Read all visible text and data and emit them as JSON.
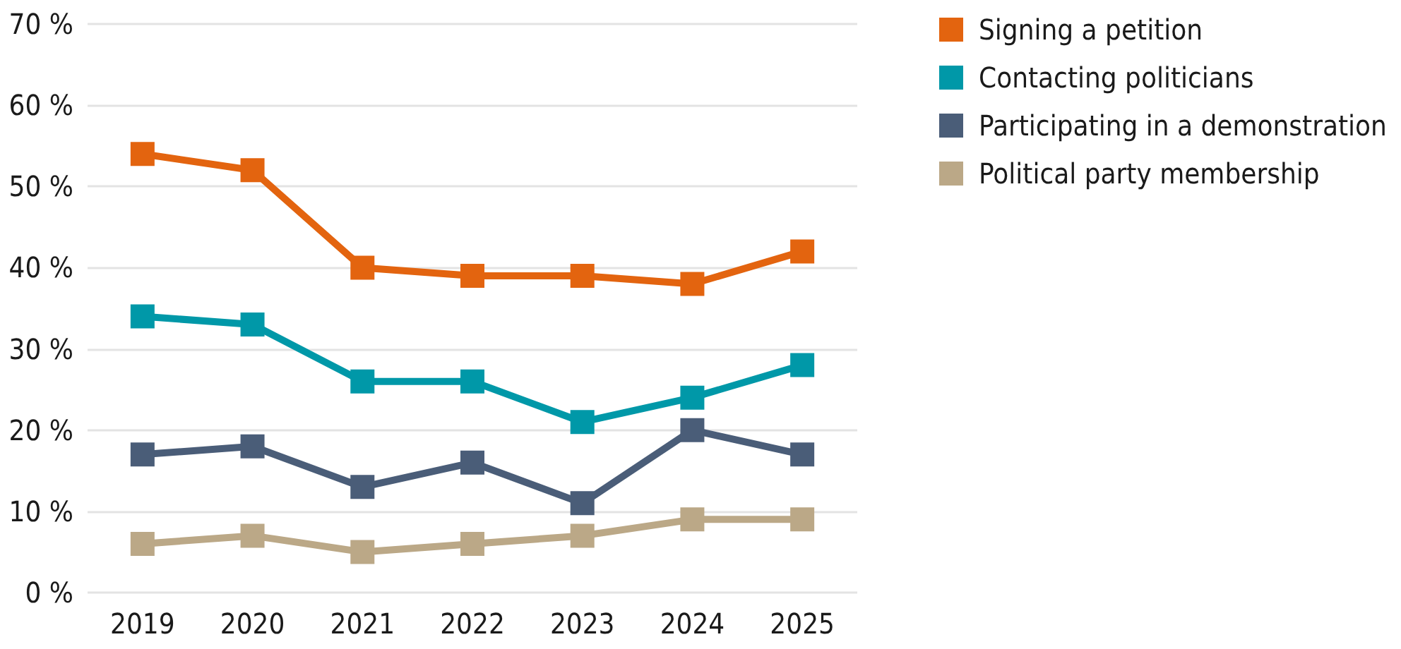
{
  "chart_data": {
    "type": "line",
    "categories": [
      "2019",
      "2020",
      "2021",
      "2022",
      "2023",
      "2024",
      "2025"
    ],
    "series": [
      {
        "name": "Signing a petition",
        "color": "#e3640f",
        "values": [
          54,
          52,
          40,
          39,
          39,
          38,
          42
        ]
      },
      {
        "name": "Contacting politicians",
        "color": "#0098a8",
        "values": [
          34,
          33,
          26,
          26,
          21,
          24,
          28
        ]
      },
      {
        "name": "Participating in a demonstration",
        "color": "#4a5d78",
        "values": [
          17,
          18,
          13,
          16,
          11,
          20,
          17
        ]
      },
      {
        "name": "Political party membership",
        "color": "#bba887",
        "values": [
          6,
          7,
          5,
          6,
          7,
          9,
          9
        ]
      }
    ],
    "ylim": [
      0,
      70
    ],
    "yticks": [
      {
        "value": 0,
        "label": "0 %"
      },
      {
        "value": 10,
        "label": "10 %"
      },
      {
        "value": 20,
        "label": "20 %"
      },
      {
        "value": 30,
        "label": "30 %"
      },
      {
        "value": 40,
        "label": "40 %"
      },
      {
        "value": 50,
        "label": "50 %"
      },
      {
        "value": 60,
        "label": "60 %"
      },
      {
        "value": 70,
        "label": "70 %"
      }
    ],
    "grid": "y",
    "legend": "top right",
    "marker": "square",
    "line_style": "solid"
  }
}
